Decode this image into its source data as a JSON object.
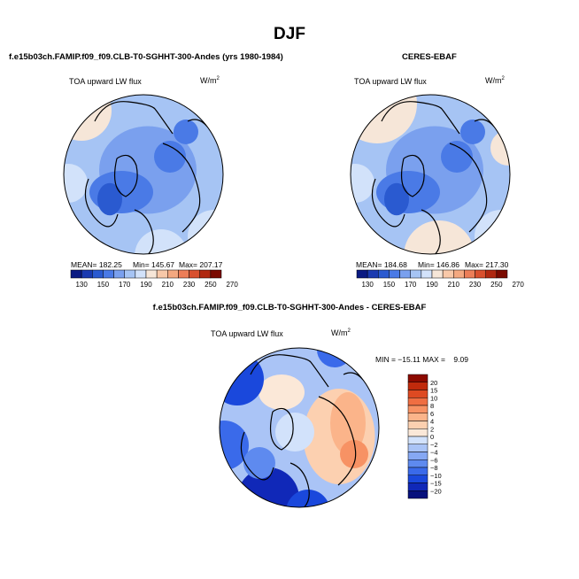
{
  "figure": {
    "title": "DJF"
  },
  "colors": {
    "abs_levels": [
      "#0a1a82",
      "#1a3ab0",
      "#2a5ad0",
      "#4a7ae6",
      "#7aa0ee",
      "#a6c4f4",
      "#d2e2fa",
      "#f6e6d8",
      "#f8c8a8",
      "#f4a880",
      "#ec7e58",
      "#d8502e",
      "#b02810",
      "#7a0a00"
    ],
    "diff_levels": [
      "#06107c",
      "#1028b8",
      "#1a48dc",
      "#3a6aea",
      "#5e8aef",
      "#86a8f3",
      "#aac4f6",
      "#d2e2fb",
      "#fbe8d8",
      "#fcd0b0",
      "#fbb48a",
      "#f79264",
      "#ef6e42",
      "#de4a22",
      "#c02a0c",
      "#8c0a00"
    ],
    "ocean_base": "#a8c6f2",
    "coast": "#000000"
  },
  "chart_data": [
    {
      "type": "map-polar-contour",
      "panel": "model",
      "title": "f.e15b03ch.FAMIP.f09_f09.CLB-T0-SGHHT-300-Andes (yrs 1980-1984)",
      "variable": "TOA upward LW flux",
      "units": "W/m",
      "units_sup": "2",
      "stats": {
        "mean": "182.25",
        "min": "145.67",
        "max": "207.17"
      },
      "stats_text": {
        "mean": "MEAN= 182.25",
        "min": "Min= 145.67",
        "max": "Max= 207.17"
      },
      "colorbar_ticks": [
        "130",
        "150",
        "170",
        "190",
        "210",
        "230",
        "250",
        "270"
      ]
    },
    {
      "type": "map-polar-contour",
      "panel": "obs",
      "title": "CERES-EBAF",
      "variable": "TOA upward LW flux",
      "units": "W/m",
      "units_sup": "2",
      "stats": {
        "mean": "184.68",
        "min": "146.86",
        "max": "217.30"
      },
      "stats_text": {
        "mean": "MEAN= 184.68",
        "min": "Min= 146.86",
        "max": "Max= 217.30"
      },
      "colorbar_ticks": [
        "130",
        "150",
        "170",
        "190",
        "210",
        "230",
        "250",
        "270"
      ]
    },
    {
      "type": "map-polar-contour",
      "panel": "difference",
      "title": "f.e15b03ch.FAMIP.f09_f09.CLB-T0-SGHHT-300-Andes - CERES-EBAF",
      "variable": "TOA upward LW flux",
      "units": "W/m",
      "units_sup": "2",
      "stats": {
        "min": "-15.11",
        "max": "9.09"
      },
      "stats_text": "MIN = −15.11 MAX =    9.09",
      "colorbar_ticks": [
        "20",
        "15",
        "10",
        "8",
        "6",
        "4",
        "2",
        "0",
        "−2",
        "−4",
        "−6",
        "−8",
        "−10",
        "−15",
        "−20"
      ]
    }
  ]
}
